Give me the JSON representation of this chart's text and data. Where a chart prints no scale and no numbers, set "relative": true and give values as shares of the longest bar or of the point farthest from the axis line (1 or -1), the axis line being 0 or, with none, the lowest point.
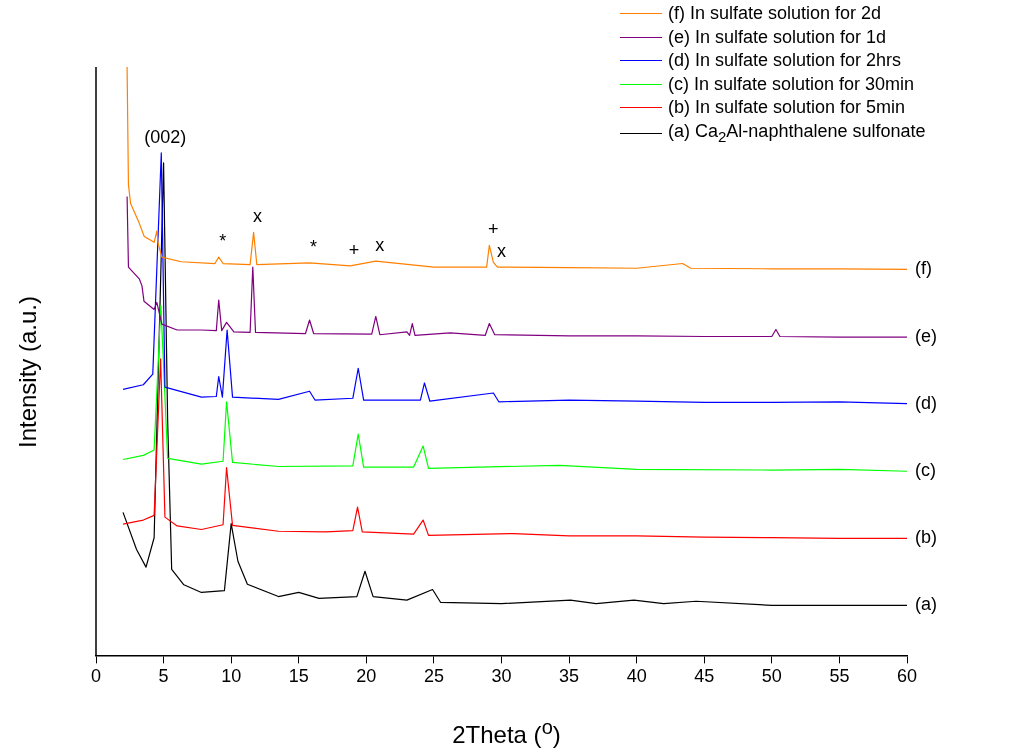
{
  "chart_data": {
    "type": "line",
    "relative": true,
    "xlabel": "2Theta ($^{o}$)",
    "ylabel": "Intensity (a.u.)",
    "xlim": [
      0,
      60
    ],
    "xticks": [
      0,
      5,
      10,
      15,
      20,
      25,
      30,
      35,
      40,
      45,
      50,
      55,
      60
    ],
    "legend": "top right",
    "grid": false,
    "marker": "none",
    "line_style": "solid",
    "series": [
      {
        "name": "(f) In sulfate solution for 2d",
        "color": "#ff8000",
        "x": [
          2.3,
          2.4,
          2.56,
          3.14,
          3.57,
          4.3,
          4.5,
          4.6,
          4.87,
          6.3,
          8.8,
          9.08,
          9.4,
          11.4,
          11.66,
          11.9,
          15.8,
          18.8,
          20.7,
          25,
          28.9,
          29.1,
          29.4,
          29.7,
          35,
          40,
          43.4,
          44,
          50,
          55,
          60
        ],
        "values": [
          1.0,
          0.8,
          0.768,
          0.738,
          0.712,
          0.702,
          0.721,
          0.7,
          0.677,
          0.669,
          0.666,
          0.677,
          0.666,
          0.664,
          0.719,
          0.664,
          0.667,
          0.662,
          0.67,
          0.66,
          0.66,
          0.697,
          0.668,
          0.66,
          0.659,
          0.658,
          0.666,
          0.658,
          0.657,
          0.657,
          0.656
        ]
      },
      {
        "name": "(e) In sulfate solution for 1d",
        "color": "#800080",
        "x": [
          2.3,
          2.4,
          3.2,
          3.4,
          3.55,
          4.3,
          4.5,
          4.87,
          6,
          7.8,
          8.9,
          9.08,
          9.3,
          9.66,
          10.2,
          11.4,
          11.6,
          11.8,
          15.5,
          15.8,
          16.1,
          20.4,
          20.7,
          21.0,
          23.0,
          23.2,
          23.4,
          23.6,
          26.2,
          28.8,
          29.1,
          29.5,
          35,
          40,
          45,
          50,
          50.3,
          50.6,
          55,
          60
        ],
        "values": [
          0.78,
          0.66,
          0.64,
          0.628,
          0.602,
          0.588,
          0.6,
          0.563,
          0.553,
          0.553,
          0.552,
          0.604,
          0.552,
          0.566,
          0.55,
          0.549,
          0.66,
          0.549,
          0.547,
          0.57,
          0.547,
          0.546,
          0.576,
          0.545,
          0.55,
          0.544,
          0.564,
          0.544,
          0.548,
          0.544,
          0.564,
          0.545,
          0.543,
          0.543,
          0.542,
          0.542,
          0.554,
          0.542,
          0.541,
          0.541
        ]
      },
      {
        "name": "(d) In sulfate solution for 2hrs",
        "color": "#0000ff",
        "x": [
          2,
          3.5,
          4.2,
          4.83,
          5.1,
          7.8,
          8.9,
          9.08,
          9.35,
          9.7,
          10.1,
          13.5,
          15.8,
          16.2,
          19.0,
          19.4,
          19.8,
          24.0,
          24.3,
          24.7,
          29.4,
          29.8,
          35,
          40,
          45,
          50,
          55,
          60
        ],
        "values": [
          0.452,
          0.46,
          0.478,
          0.854,
          0.456,
          0.439,
          0.44,
          0.474,
          0.439,
          0.553,
          0.439,
          0.435,
          0.449,
          0.434,
          0.437,
          0.488,
          0.434,
          0.434,
          0.463,
          0.432,
          0.446,
          0.431,
          0.434,
          0.432,
          0.43,
          0.43,
          0.431,
          0.428
        ]
      },
      {
        "name": "(c) In sulfate solution for 30min",
        "color": "#00ff00",
        "x": [
          2,
          3.5,
          4.3,
          4.8,
          5.3,
          7.8,
          9.4,
          9.66,
          10.1,
          13.5,
          19.0,
          19.4,
          19.8,
          23.5,
          24.2,
          24.6,
          34.3,
          40,
          50,
          55,
          60
        ],
        "values": [
          0.333,
          0.34,
          0.349,
          0.595,
          0.335,
          0.325,
          0.33,
          0.431,
          0.328,
          0.321,
          0.322,
          0.376,
          0.32,
          0.32,
          0.356,
          0.318,
          0.323,
          0.316,
          0.315,
          0.316,
          0.313
        ]
      },
      {
        "name": "(b) In sulfate solution for 5min",
        "color": "#ff0000",
        "x": [
          2,
          3.5,
          4.3,
          4.78,
          5.1,
          6,
          7.8,
          9.4,
          9.66,
          10.1,
          13.5,
          17,
          19.0,
          19.35,
          19.7,
          23.5,
          24.2,
          24.6,
          30.9,
          35,
          40,
          45,
          50,
          55,
          60
        ],
        "values": [
          0.223,
          0.23,
          0.238,
          0.504,
          0.235,
          0.22,
          0.214,
          0.222,
          0.319,
          0.221,
          0.211,
          0.21,
          0.212,
          0.252,
          0.21,
          0.206,
          0.23,
          0.204,
          0.207,
          0.203,
          0.203,
          0.201,
          0.2,
          0.199,
          0.199
        ]
      },
      {
        "name": "(a) Ca$_{2}$Al-naphthalene sulfonate",
        "color": "#000000",
        "x": [
          2,
          3,
          3.7,
          4.3,
          5.0,
          5.3,
          5.6,
          6.5,
          7.8,
          9.5,
          10.0,
          10.5,
          11.2,
          13.5,
          15,
          16.5,
          19.3,
          19.9,
          20.5,
          23,
          24.9,
          25.5,
          30,
          35.1,
          37,
          39.8,
          42,
          44.4,
          50,
          55,
          60
        ],
        "values": [
          0.243,
          0.18,
          0.15,
          0.2,
          0.837,
          0.4,
          0.146,
          0.12,
          0.107,
          0.11,
          0.224,
          0.16,
          0.121,
          0.1,
          0.107,
          0.097,
          0.1,
          0.143,
          0.1,
          0.094,
          0.112,
          0.09,
          0.088,
          0.094,
          0.088,
          0.094,
          0.088,
          0.092,
          0.085,
          0.085,
          0.085
        ]
      }
    ],
    "annotations": [
      {
        "text": "(002)",
        "x": 4.83,
        "y": 0.854
      },
      {
        "text": "*",
        "x": 9.08,
        "y": 0.677
      },
      {
        "text": "x",
        "x": 11.66,
        "y": 0.719
      },
      {
        "text": "*",
        "x": 15.8,
        "y": 0.667
      },
      {
        "text": "+",
        "x": 18.8,
        "y": 0.662
      },
      {
        "text": "x",
        "x": 20.7,
        "y": 0.67
      },
      {
        "text": "+",
        "x": 29.1,
        "y": 0.697
      },
      {
        "text": "x",
        "x": 29.7,
        "y": 0.66
      },
      {
        "text": "(f)",
        "x": 60,
        "y": 0.656
      },
      {
        "text": "(e)",
        "x": 60,
        "y": 0.541
      },
      {
        "text": "(d)",
        "x": 60,
        "y": 0.428
      },
      {
        "text": "(c)",
        "x": 60,
        "y": 0.313
      },
      {
        "text": "(b)",
        "x": 60,
        "y": 0.199
      },
      {
        "text": "(a)",
        "x": 60,
        "y": 0.085
      }
    ]
  }
}
